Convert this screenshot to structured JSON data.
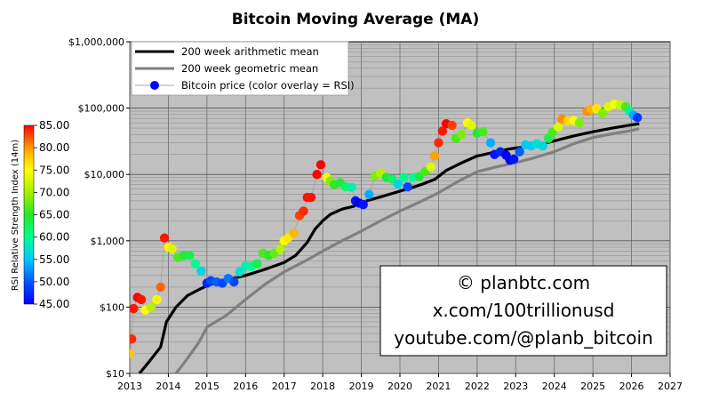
{
  "chart_data": {
    "type": "scatter",
    "title": "Bitcoin Moving Average (MA)",
    "xlabel": "",
    "ylabel": "",
    "y_scale": "log",
    "xlim": [
      2013,
      2027
    ],
    "ylim": [
      10,
      1000000
    ],
    "x_ticks": [
      "2013",
      "2014",
      "2015",
      "2016",
      "2017",
      "2018",
      "2019",
      "2020",
      "2021",
      "2022",
      "2023",
      "2024",
      "2025",
      "2026",
      "2027"
    ],
    "y_ticks": [
      {
        "value": 10,
        "label": "$10"
      },
      {
        "value": 100,
        "label": "$100"
      },
      {
        "value": 1000,
        "label": "$1,000"
      },
      {
        "value": 10000,
        "label": "$10,000"
      },
      {
        "value": 100000,
        "label": "$100,000"
      },
      {
        "value": 1000000,
        "label": "$1,000,000"
      }
    ],
    "grid": true,
    "legend_position": "top-left",
    "series": [
      {
        "name": "200 week arithmetic mean",
        "kind": "line",
        "color": "#000000",
        "x": [
          2013.25,
          2013.5,
          2013.8,
          2013.95,
          2014.2,
          2014.5,
          2014.8,
          2015.0,
          2015.3,
          2015.6,
          2016.0,
          2016.5,
          2017.0,
          2017.3,
          2017.6,
          2017.8,
          2018.0,
          2018.2,
          2018.5,
          2018.8,
          2019.0,
          2019.5,
          2020.0,
          2020.3,
          2020.6,
          2020.9,
          2021.2,
          2021.6,
          2022.0,
          2022.5,
          2022.8,
          2023.0,
          2023.5,
          2024.0,
          2024.5,
          2025.0,
          2025.5,
          2026.0,
          2026.2
        ],
        "y": [
          10,
          15,
          25,
          60,
          100,
          150,
          185,
          210,
          240,
          265,
          300,
          370,
          470,
          600,
          950,
          1500,
          2000,
          2500,
          3000,
          3300,
          3800,
          4600,
          5600,
          6300,
          7200,
          8400,
          11500,
          15000,
          19000,
          22000,
          24000,
          25000,
          27000,
          32000,
          38000,
          44000,
          50000,
          56000,
          58000
        ]
      },
      {
        "name": "200 week geometric mean",
        "kind": "line",
        "color": "#808080",
        "x": [
          2014.2,
          2014.5,
          2014.8,
          2015.0,
          2015.5,
          2016.0,
          2016.5,
          2017.0,
          2017.5,
          2018.0,
          2018.5,
          2019.0,
          2019.5,
          2020.0,
          2020.5,
          2021.0,
          2021.5,
          2022.0,
          2022.5,
          2023.0,
          2023.5,
          2024.0,
          2024.5,
          2025.0,
          2025.5,
          2026.0,
          2026.2
        ],
        "y": [
          10,
          17,
          30,
          50,
          75,
          130,
          220,
          340,
          480,
          700,
          1000,
          1400,
          2000,
          2800,
          3800,
          5300,
          7800,
          11000,
          13000,
          15000,
          18000,
          22000,
          29000,
          36000,
          41000,
          46000,
          49000
        ]
      },
      {
        "name": "Bitcoin price (color overlay = RSI)",
        "kind": "scatter",
        "color": "#0000ff",
        "points": [
          {
            "x": 2013.0,
            "y": 20,
            "rsi": 75
          },
          {
            "x": 2013.05,
            "y": 33,
            "rsi": 83
          },
          {
            "x": 2013.1,
            "y": 95,
            "rsi": 84
          },
          {
            "x": 2013.2,
            "y": 140,
            "rsi": 85
          },
          {
            "x": 2013.3,
            "y": 130,
            "rsi": 84
          },
          {
            "x": 2013.4,
            "y": 90,
            "rsi": 72
          },
          {
            "x": 2013.55,
            "y": 100,
            "rsi": 68
          },
          {
            "x": 2013.7,
            "y": 130,
            "rsi": 72
          },
          {
            "x": 2013.8,
            "y": 200,
            "rsi": 80
          },
          {
            "x": 2013.9,
            "y": 1100,
            "rsi": 84
          },
          {
            "x": 2014.0,
            "y": 800,
            "rsi": 72
          },
          {
            "x": 2014.1,
            "y": 760,
            "rsi": 70
          },
          {
            "x": 2014.25,
            "y": 560,
            "rsi": 64
          },
          {
            "x": 2014.4,
            "y": 600,
            "rsi": 62
          },
          {
            "x": 2014.55,
            "y": 600,
            "rsi": 61
          },
          {
            "x": 2014.7,
            "y": 450,
            "rsi": 58
          },
          {
            "x": 2014.85,
            "y": 350,
            "rsi": 55
          },
          {
            "x": 2015.0,
            "y": 230,
            "rsi": 47
          },
          {
            "x": 2015.1,
            "y": 250,
            "rsi": 49
          },
          {
            "x": 2015.25,
            "y": 240,
            "rsi": 50
          },
          {
            "x": 2015.4,
            "y": 230,
            "rsi": 49
          },
          {
            "x": 2015.55,
            "y": 270,
            "rsi": 51
          },
          {
            "x": 2015.7,
            "y": 240,
            "rsi": 49
          },
          {
            "x": 2015.85,
            "y": 340,
            "rsi": 56
          },
          {
            "x": 2016.0,
            "y": 420,
            "rsi": 57
          },
          {
            "x": 2016.15,
            "y": 410,
            "rsi": 58
          },
          {
            "x": 2016.3,
            "y": 450,
            "rsi": 61
          },
          {
            "x": 2016.45,
            "y": 650,
            "rsi": 64
          },
          {
            "x": 2016.6,
            "y": 600,
            "rsi": 63
          },
          {
            "x": 2016.75,
            "y": 650,
            "rsi": 65
          },
          {
            "x": 2016.9,
            "y": 750,
            "rsi": 68
          },
          {
            "x": 2017.0,
            "y": 1000,
            "rsi": 72
          },
          {
            "x": 2017.1,
            "y": 1100,
            "rsi": 73
          },
          {
            "x": 2017.25,
            "y": 1300,
            "rsi": 76
          },
          {
            "x": 2017.4,
            "y": 2400,
            "rsi": 82
          },
          {
            "x": 2017.5,
            "y": 2800,
            "rsi": 83
          },
          {
            "x": 2017.6,
            "y": 4500,
            "rsi": 84
          },
          {
            "x": 2017.7,
            "y": 4500,
            "rsi": 84
          },
          {
            "x": 2017.85,
            "y": 10000,
            "rsi": 85
          },
          {
            "x": 2017.95,
            "y": 14000,
            "rsi": 85
          },
          {
            "x": 2018.1,
            "y": 9000,
            "rsi": 72
          },
          {
            "x": 2018.2,
            "y": 8000,
            "rsi": 66
          },
          {
            "x": 2018.3,
            "y": 7000,
            "rsi": 63
          },
          {
            "x": 2018.45,
            "y": 7500,
            "rsi": 62
          },
          {
            "x": 2018.6,
            "y": 6500,
            "rsi": 60
          },
          {
            "x": 2018.75,
            "y": 6400,
            "rsi": 57
          },
          {
            "x": 2018.85,
            "y": 4000,
            "rsi": 46
          },
          {
            "x": 2018.95,
            "y": 3700,
            "rsi": 45
          },
          {
            "x": 2019.05,
            "y": 3500,
            "rsi": 46
          },
          {
            "x": 2019.2,
            "y": 5000,
            "rsi": 53
          },
          {
            "x": 2019.35,
            "y": 9500,
            "rsi": 66
          },
          {
            "x": 2019.5,
            "y": 10500,
            "rsi": 68
          },
          {
            "x": 2019.65,
            "y": 9000,
            "rsi": 62
          },
          {
            "x": 2019.8,
            "y": 8500,
            "rsi": 60
          },
          {
            "x": 2019.95,
            "y": 7200,
            "rsi": 55
          },
          {
            "x": 2020.1,
            "y": 9000,
            "rsi": 58
          },
          {
            "x": 2020.2,
            "y": 6500,
            "rsi": 49
          },
          {
            "x": 2020.35,
            "y": 9000,
            "rsi": 58
          },
          {
            "x": 2020.5,
            "y": 9300,
            "rsi": 62
          },
          {
            "x": 2020.65,
            "y": 11000,
            "rsi": 64
          },
          {
            "x": 2020.8,
            "y": 13000,
            "rsi": 70
          },
          {
            "x": 2020.9,
            "y": 19000,
            "rsi": 77
          },
          {
            "x": 2021.0,
            "y": 30000,
            "rsi": 83
          },
          {
            "x": 2021.1,
            "y": 45000,
            "rsi": 84
          },
          {
            "x": 2021.2,
            "y": 58000,
            "rsi": 85
          },
          {
            "x": 2021.35,
            "y": 55000,
            "rsi": 82
          },
          {
            "x": 2021.45,
            "y": 35000,
            "rsi": 64
          },
          {
            "x": 2021.6,
            "y": 40000,
            "rsi": 66
          },
          {
            "x": 2021.75,
            "y": 60000,
            "rsi": 72
          },
          {
            "x": 2021.85,
            "y": 55000,
            "rsi": 70
          },
          {
            "x": 2022.0,
            "y": 42000,
            "rsi": 62
          },
          {
            "x": 2022.15,
            "y": 44000,
            "rsi": 64
          },
          {
            "x": 2022.35,
            "y": 30000,
            "rsi": 53
          },
          {
            "x": 2022.45,
            "y": 20000,
            "rsi": 46
          },
          {
            "x": 2022.6,
            "y": 22000,
            "rsi": 47
          },
          {
            "x": 2022.75,
            "y": 19500,
            "rsi": 45
          },
          {
            "x": 2022.85,
            "y": 16500,
            "rsi": 45
          },
          {
            "x": 2022.95,
            "y": 17000,
            "rsi": 46
          },
          {
            "x": 2023.1,
            "y": 22000,
            "rsi": 50
          },
          {
            "x": 2023.25,
            "y": 28000,
            "rsi": 54
          },
          {
            "x": 2023.4,
            "y": 27000,
            "rsi": 54
          },
          {
            "x": 2023.55,
            "y": 29000,
            "rsi": 56
          },
          {
            "x": 2023.7,
            "y": 27000,
            "rsi": 55
          },
          {
            "x": 2023.85,
            "y": 35000,
            "rsi": 61
          },
          {
            "x": 2023.95,
            "y": 43000,
            "rsi": 64
          },
          {
            "x": 2024.1,
            "y": 52000,
            "rsi": 70
          },
          {
            "x": 2024.2,
            "y": 68000,
            "rsi": 78
          },
          {
            "x": 2024.35,
            "y": 64000,
            "rsi": 74
          },
          {
            "x": 2024.5,
            "y": 65000,
            "rsi": 71
          },
          {
            "x": 2024.65,
            "y": 60000,
            "rsi": 66
          },
          {
            "x": 2024.85,
            "y": 90000,
            "rsi": 78
          },
          {
            "x": 2024.95,
            "y": 97000,
            "rsi": 76
          },
          {
            "x": 2025.1,
            "y": 98000,
            "rsi": 73
          },
          {
            "x": 2025.25,
            "y": 84000,
            "rsi": 66
          },
          {
            "x": 2025.4,
            "y": 105000,
            "rsi": 70
          },
          {
            "x": 2025.55,
            "y": 115000,
            "rsi": 71
          },
          {
            "x": 2025.7,
            "y": 112000,
            "rsi": 69
          },
          {
            "x": 2025.85,
            "y": 105000,
            "rsi": 64
          },
          {
            "x": 2025.95,
            "y": 90000,
            "rsi": 57
          },
          {
            "x": 2026.05,
            "y": 78000,
            "rsi": 53
          },
          {
            "x": 2026.15,
            "y": 72000,
            "rsi": 48
          }
        ]
      }
    ],
    "colorbar": {
      "label": "RSI Relative Strength Index (14m)",
      "min": 45,
      "max": 85,
      "ticks": [
        "85.00",
        "80.00",
        "75.00",
        "70.00",
        "65.00",
        "60.00",
        "55.00",
        "50.00",
        "45.00"
      ],
      "colors": [
        "#0000ff",
        "#0050ff",
        "#00c8ff",
        "#00ff8c",
        "#28e628",
        "#a0f000",
        "#ffff00",
        "#ffb400",
        "#ff5a00",
        "#ff0000"
      ]
    },
    "watermark_lines": [
      "© planbtc.com",
      "x.com/100trillionusd",
      "youtube.com/@planb_bitcoin"
    ]
  }
}
